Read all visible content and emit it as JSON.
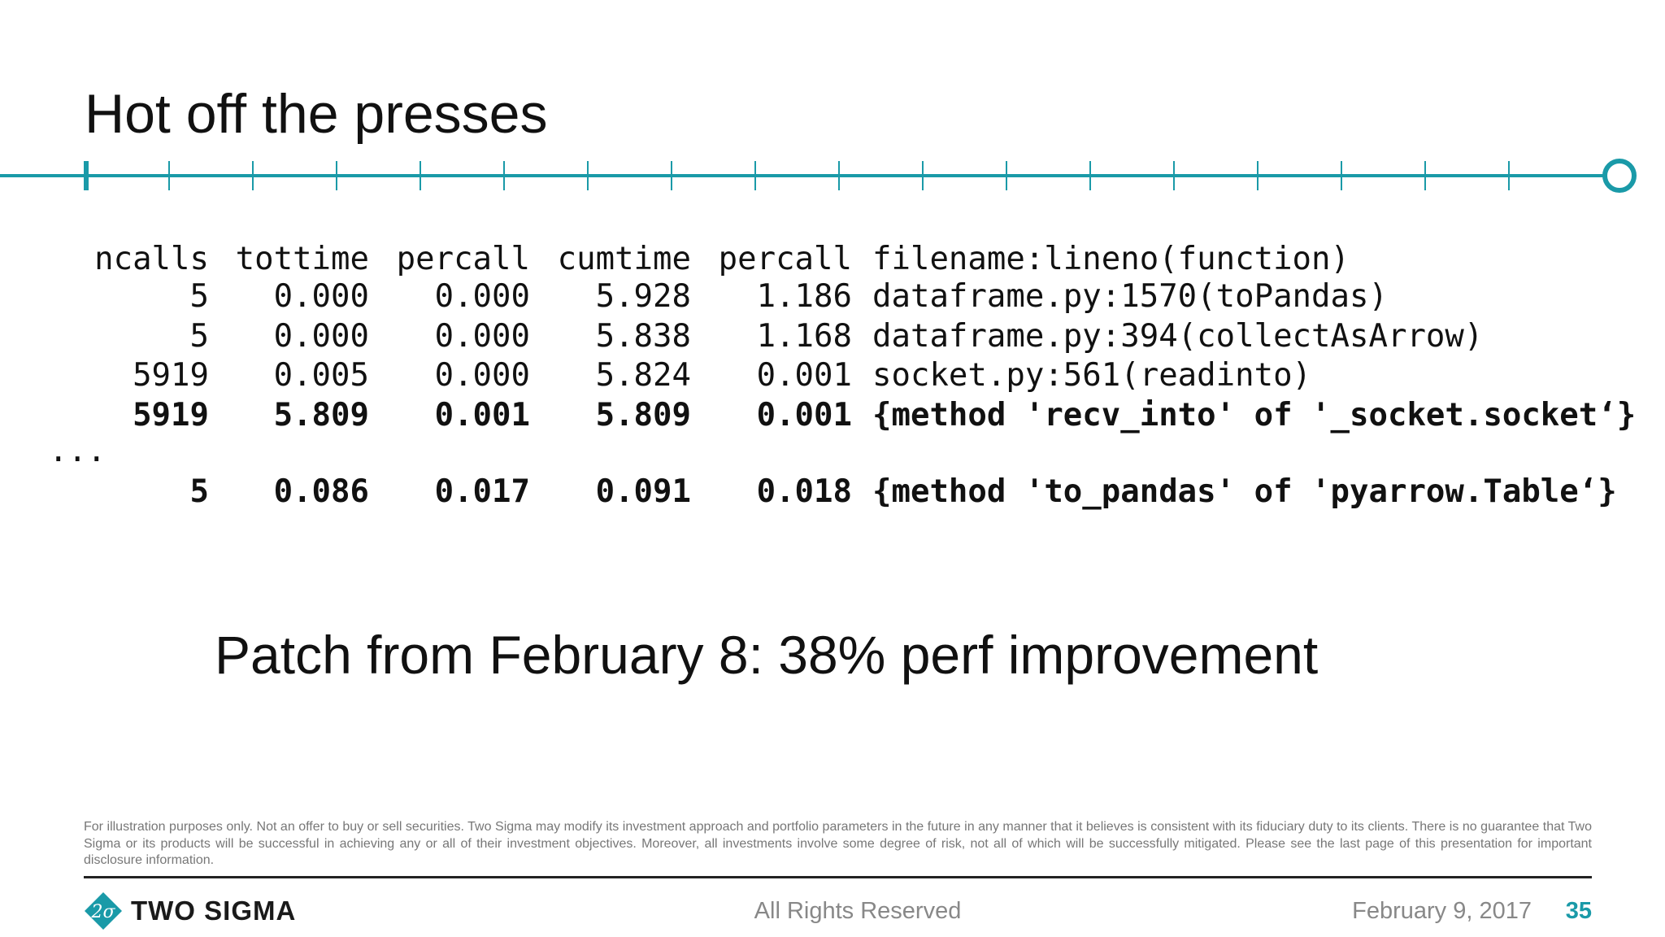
{
  "slide": {
    "title": "Hot off the presses",
    "headline": "Patch from February 8: 38% perf improvement",
    "accent_color": "#1a9aa8"
  },
  "profile": {
    "headers": {
      "ncalls": "ncalls",
      "tottime": "tottime",
      "percall1": "percall",
      "cumtime": "cumtime",
      "percall2": "percall",
      "func": "filename:lineno(function)"
    },
    "rows": [
      {
        "ncalls": "5",
        "tottime": "0.000",
        "percall1": "0.000",
        "cumtime": "5.928",
        "percall2": "1.186",
        "func": "dataframe.py:1570(toPandas)"
      },
      {
        "ncalls": "5",
        "tottime": "0.000",
        "percall1": "0.000",
        "cumtime": "5.838",
        "percall2": "1.168",
        "func": "dataframe.py:394(collectAsArrow)"
      },
      {
        "ncalls": "5919",
        "tottime": "0.005",
        "percall1": "0.000",
        "cumtime": "5.824",
        "percall2": "0.001",
        "func": "socket.py:561(readinto)"
      },
      {
        "ncalls": "5919",
        "tottime": "5.809",
        "percall1": "0.001",
        "cumtime": "5.809",
        "percall2": "0.001",
        "func": "{method 'recv_into' of '_socket.socket‘}"
      }
    ],
    "ellipsis": "...",
    "last_row": {
      "ncalls": "5",
      "tottime": "0.086",
      "percall1": "0.017",
      "cumtime": "0.091",
      "percall2": "0.018",
      "func": "{method 'to_pandas' of 'pyarrow.Table‘}"
    }
  },
  "footer": {
    "disclaimer": "For illustration purposes only. Not an offer to buy or sell securities. Two Sigma may modify its investment approach and portfolio parameters in the future in any manner that it believes is consistent with its fiduciary duty to its clients. There is no guarantee that Two Sigma or its products will be successful in achieving any or all of their investment objectives. Moreover, all investments involve some degree of risk, not all of which will be successfully mitigated. Please see the last page of this presentation for important disclosure information.",
    "logo_mark": "2σ",
    "logo_text": "TWO SIGMA",
    "rights": "All Rights Reserved",
    "date": "February 9, 2017",
    "page_number": "35"
  }
}
